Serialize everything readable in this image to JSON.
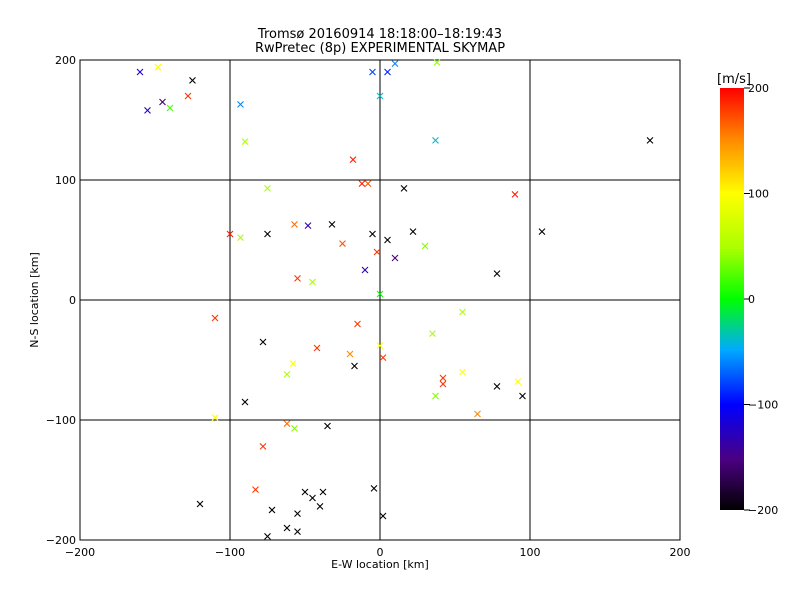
{
  "chart_data": {
    "type": "scatter",
    "title": "Tromsø 20160914 18:18:00–18:19:43",
    "subtitle": "RwPretec (8p) EXPERIMENTAL SKYMAP",
    "xlabel": "E-W location [km]",
    "ylabel": "N-S location [km]",
    "xlim": [
      -200,
      200
    ],
    "ylim": [
      -200,
      200
    ],
    "x_ticks": [
      "−200",
      "−100",
      "0",
      "100",
      "200"
    ],
    "y_ticks": [
      "−200",
      "−100",
      "0",
      "100",
      "200"
    ],
    "grid": true,
    "colorbar": {
      "label": "[m/s]",
      "range": [
        -200,
        200
      ],
      "ticks": [
        "200",
        "100",
        "0",
        "−100",
        "−200"
      ]
    },
    "points": [
      {
        "x": -160,
        "y": 190,
        "v": -120,
        "m": "x"
      },
      {
        "x": -148,
        "y": 194,
        "v": 100,
        "m": "x"
      },
      {
        "x": -145,
        "y": 165,
        "v": -160,
        "m": "x"
      },
      {
        "x": -125,
        "y": 183,
        "v": -200,
        "m": "x"
      },
      {
        "x": -128,
        "y": 170,
        "v": 180,
        "m": "x"
      },
      {
        "x": -155,
        "y": 158,
        "v": -120,
        "m": "x"
      },
      {
        "x": -140,
        "y": 160,
        "v": 20,
        "m": "x"
      },
      {
        "x": -93,
        "y": 163,
        "v": -60,
        "m": "x"
      },
      {
        "x": -90,
        "y": 132,
        "v": 50,
        "m": "x"
      },
      {
        "x": -5,
        "y": 190,
        "v": -80,
        "m": "x"
      },
      {
        "x": 5,
        "y": 190,
        "v": -90,
        "m": "x"
      },
      {
        "x": 10,
        "y": 197,
        "v": -60,
        "m": "x"
      },
      {
        "x": 38,
        "y": 198,
        "v": 40,
        "m": "x"
      },
      {
        "x": 0,
        "y": 170,
        "v": -40,
        "m": "x"
      },
      {
        "x": 37,
        "y": 133,
        "v": -40,
        "m": "x"
      },
      {
        "x": -18,
        "y": 117,
        "v": 190,
        "m": "x"
      },
      {
        "x": -12,
        "y": 97,
        "v": 190,
        "m": "x"
      },
      {
        "x": -8,
        "y": 97,
        "v": 170,
        "m": "x"
      },
      {
        "x": 16,
        "y": 93,
        "v": -200,
        "m": "x"
      },
      {
        "x": 90,
        "y": 88,
        "v": 190,
        "m": "x"
      },
      {
        "x": 180,
        "y": 133,
        "v": -200,
        "m": "x"
      },
      {
        "x": 108,
        "y": 57,
        "v": -200,
        "m": "x"
      },
      {
        "x": -75,
        "y": 93,
        "v": 50,
        "m": "x"
      },
      {
        "x": -100,
        "y": 55,
        "v": 190,
        "m": "x"
      },
      {
        "x": -93,
        "y": 52,
        "v": 50,
        "m": "x"
      },
      {
        "x": -57,
        "y": 63,
        "v": 160,
        "m": "x"
      },
      {
        "x": -48,
        "y": 62,
        "v": -130,
        "m": "x"
      },
      {
        "x": -32,
        "y": 63,
        "v": -200,
        "m": "x"
      },
      {
        "x": -25,
        "y": 47,
        "v": 170,
        "m": "x"
      },
      {
        "x": -75,
        "y": 55,
        "v": -200,
        "m": "x"
      },
      {
        "x": -55,
        "y": 18,
        "v": 180,
        "m": "x"
      },
      {
        "x": -45,
        "y": 15,
        "v": 50,
        "m": "x"
      },
      {
        "x": -110,
        "y": -15,
        "v": 180,
        "m": "x"
      },
      {
        "x": -62,
        "y": -62,
        "v": 50,
        "m": "x"
      },
      {
        "x": -90,
        "y": -85,
        "v": -200,
        "m": "x"
      },
      {
        "x": -110,
        "y": -98,
        "v": 100,
        "m": "x"
      },
      {
        "x": -62,
        "y": -103,
        "v": 160,
        "m": "x"
      },
      {
        "x": -57,
        "y": -107,
        "v": 40,
        "m": "x"
      },
      {
        "x": -35,
        "y": -105,
        "v": -200,
        "m": "x"
      },
      {
        "x": -78,
        "y": -122,
        "v": 180,
        "m": "x"
      },
      {
        "x": -83,
        "y": -158,
        "v": 180,
        "m": "x"
      },
      {
        "x": -120,
        "y": -170,
        "v": -200,
        "m": "x"
      },
      {
        "x": -45,
        "y": -165,
        "v": -200,
        "m": "x"
      },
      {
        "x": -50,
        "y": -160,
        "v": -200,
        "m": "x"
      },
      {
        "x": -38,
        "y": -160,
        "v": -200,
        "m": "x"
      },
      {
        "x": -55,
        "y": -178,
        "v": -200,
        "m": "x"
      },
      {
        "x": -72,
        "y": -175,
        "v": -200,
        "m": "x"
      },
      {
        "x": -62,
        "y": -190,
        "v": -200,
        "m": "x"
      },
      {
        "x": -55,
        "y": -193,
        "v": -200,
        "m": "x"
      },
      {
        "x": -75,
        "y": -197,
        "v": -200,
        "m": "x"
      },
      {
        "x": -40,
        "y": -172,
        "v": -200,
        "m": "x"
      },
      {
        "x": -4,
        "y": -157,
        "v": -200,
        "m": "x"
      },
      {
        "x": 2,
        "y": -180,
        "v": -200,
        "m": "x"
      },
      {
        "x": 55,
        "y": -60,
        "v": 100,
        "m": "x"
      },
      {
        "x": 78,
        "y": -72,
        "v": -200,
        "m": "x"
      },
      {
        "x": 92,
        "y": -68,
        "v": 100,
        "m": "x"
      },
      {
        "x": 95,
        "y": -80,
        "v": -200,
        "m": "x"
      },
      {
        "x": 65,
        "y": -95,
        "v": 150,
        "m": "x"
      },
      {
        "x": 37,
        "y": -80,
        "v": 40,
        "m": "x"
      },
      {
        "x": 42,
        "y": -70,
        "v": 180,
        "m": "x"
      },
      {
        "x": 55,
        "y": -10,
        "v": 50,
        "m": "x"
      },
      {
        "x": 42,
        "y": -65,
        "v": 180,
        "m": "x"
      },
      {
        "x": 22,
        "y": 57,
        "v": -200,
        "m": "x"
      },
      {
        "x": 30,
        "y": 45,
        "v": 40,
        "m": "x"
      },
      {
        "x": 78,
        "y": 22,
        "v": -200,
        "m": "x"
      },
      {
        "x": -5,
        "y": 55,
        "v": -200,
        "m": "x"
      },
      {
        "x": 5,
        "y": 50,
        "v": -200,
        "m": "x"
      },
      {
        "x": -2,
        "y": 40,
        "v": 180,
        "m": "x"
      },
      {
        "x": 10,
        "y": 35,
        "v": -150,
        "m": "x"
      },
      {
        "x": -10,
        "y": 25,
        "v": -130,
        "m": "x"
      },
      {
        "x": 0,
        "y": 5,
        "v": 0,
        "m": "x"
      },
      {
        "x": -15,
        "y": -20,
        "v": 180,
        "m": "x"
      },
      {
        "x": -20,
        "y": -45,
        "v": 150,
        "m": "x"
      },
      {
        "x": -17,
        "y": -55,
        "v": -200,
        "m": "x"
      },
      {
        "x": 0,
        "y": -38,
        "v": 100,
        "m": "x"
      },
      {
        "x": 2,
        "y": -48,
        "v": 180,
        "m": "x"
      },
      {
        "x": 35,
        "y": -28,
        "v": 50,
        "m": "x"
      },
      {
        "x": -42,
        "y": -40,
        "v": 180,
        "m": "x"
      },
      {
        "x": -58,
        "y": -53,
        "v": 100,
        "m": "x"
      },
      {
        "x": -78,
        "y": -35,
        "v": -200,
        "m": "x"
      }
    ]
  }
}
